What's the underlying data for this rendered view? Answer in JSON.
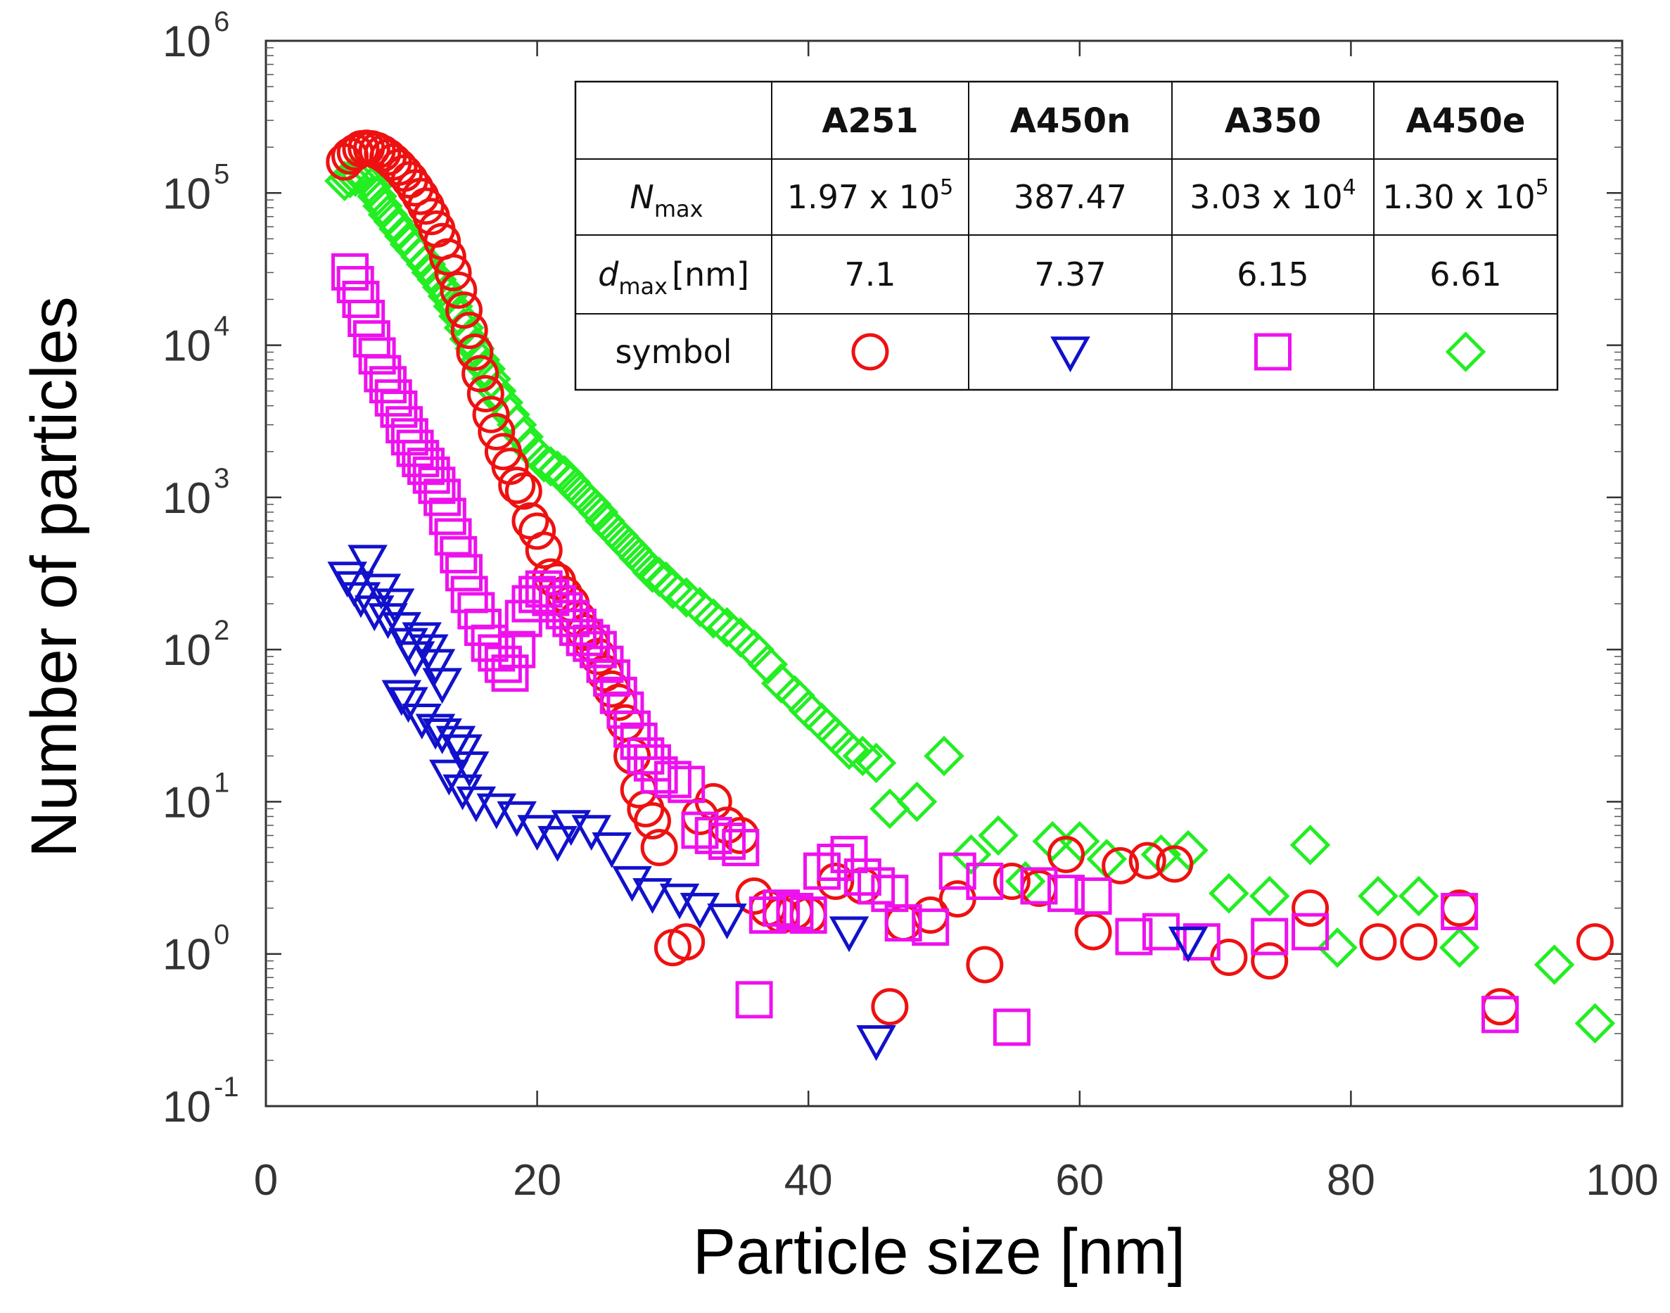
{
  "chart_data": {
    "type": "scatter",
    "xlabel": "Particle size [nm]",
    "ylabel": "Number of particles",
    "xlim": [
      0,
      100
    ],
    "ylim": [
      0.1,
      1000000
    ],
    "yscale": "log",
    "x_ticks": [
      "0",
      "20",
      "40",
      "60",
      "80",
      "100"
    ],
    "y_ticks": [
      {
        "base": "10",
        "exp": "6"
      },
      {
        "base": "10",
        "exp": "5"
      },
      {
        "base": "10",
        "exp": "4"
      },
      {
        "base": "10",
        "exp": "3"
      },
      {
        "base": "10",
        "exp": "2"
      },
      {
        "base": "10",
        "exp": "1"
      },
      {
        "base": "10",
        "exp": "0"
      },
      {
        "base": "10",
        "exp": "-1"
      }
    ],
    "series": [
      {
        "name": "A251",
        "marker": "circle",
        "color": "#ee1111",
        "points": [
          [
            5.8,
            160000
          ],
          [
            6.2,
            175000
          ],
          [
            6.6,
            185000
          ],
          [
            7.0,
            195000
          ],
          [
            7.4,
            197000
          ],
          [
            7.8,
            195000
          ],
          [
            8.2,
            190000
          ],
          [
            8.6,
            182000
          ],
          [
            9.0,
            172000
          ],
          [
            9.4,
            160000
          ],
          [
            9.8,
            148000
          ],
          [
            10.2,
            135000
          ],
          [
            10.6,
            122000
          ],
          [
            11.0,
            108000
          ],
          [
            11.4,
            95000
          ],
          [
            11.8,
            82000
          ],
          [
            12.2,
            70000
          ],
          [
            12.6,
            58000
          ],
          [
            13.0,
            48000
          ],
          [
            13.4,
            38000
          ],
          [
            13.8,
            30000
          ],
          [
            14.2,
            23000
          ],
          [
            14.6,
            17000
          ],
          [
            15.0,
            12500
          ],
          [
            15.4,
            9000
          ],
          [
            15.8,
            6500
          ],
          [
            16.2,
            4800
          ],
          [
            16.6,
            3500
          ],
          [
            17.0,
            2700
          ],
          [
            17.5,
            2000
          ],
          [
            18.0,
            1600
          ],
          [
            18.5,
            1200
          ],
          [
            19.0,
            1100
          ],
          [
            19.5,
            700
          ],
          [
            20.0,
            600
          ],
          [
            20.5,
            450
          ],
          [
            21.0,
            300
          ],
          [
            21.5,
            280
          ],
          [
            22.0,
            230
          ],
          [
            22.5,
            200
          ],
          [
            23.0,
            160
          ],
          [
            23.5,
            130
          ],
          [
            24.0,
            110
          ],
          [
            24.5,
            90
          ],
          [
            25.0,
            70
          ],
          [
            25.5,
            55
          ],
          [
            26.0,
            45
          ],
          [
            26.5,
            33
          ],
          [
            27.0,
            20
          ],
          [
            27.5,
            12
          ],
          [
            28.0,
            9
          ],
          [
            28.5,
            7.5
          ],
          [
            29.0,
            5
          ],
          [
            30.0,
            1.1
          ],
          [
            31.0,
            1.2
          ],
          [
            32.0,
            8
          ],
          [
            33.0,
            10
          ],
          [
            34.0,
            7
          ],
          [
            35.0,
            6
          ],
          [
            36.0,
            2.4
          ],
          [
            37.0,
            2.0
          ],
          [
            38.0,
            1.8
          ],
          [
            39.0,
            1.9
          ],
          [
            40.0,
            1.8
          ],
          [
            42.0,
            3.0
          ],
          [
            44.0,
            2.8
          ],
          [
            46.0,
            0.45
          ],
          [
            47.0,
            1.6
          ],
          [
            49.0,
            1.8
          ],
          [
            51.0,
            2.3
          ],
          [
            53.0,
            0.85
          ],
          [
            55.0,
            3.0
          ],
          [
            57.0,
            2.7
          ],
          [
            59.0,
            4.5
          ],
          [
            61.0,
            1.4
          ],
          [
            63.0,
            3.8
          ],
          [
            65.0,
            4.1
          ],
          [
            67.0,
            3.9
          ],
          [
            71.0,
            0.95
          ],
          [
            74.0,
            0.9
          ],
          [
            77.0,
            2.0
          ],
          [
            82.0,
            1.2
          ],
          [
            85.0,
            1.2
          ],
          [
            88.0,
            2.0
          ],
          [
            91.0,
            0.45
          ],
          [
            98.0,
            1.2
          ]
        ]
      },
      {
        "name": "A450n",
        "marker": "triangle-down",
        "color": "#1111cc",
        "points": [
          [
            6.0,
            300
          ],
          [
            6.5,
            260
          ],
          [
            7.0,
            220
          ],
          [
            7.5,
            387
          ],
          [
            8.0,
            180
          ],
          [
            8.5,
            250
          ],
          [
            9.0,
            160
          ],
          [
            9.5,
            200
          ],
          [
            10.0,
            140
          ],
          [
            10.5,
            110
          ],
          [
            11.0,
            90
          ],
          [
            11.5,
            120
          ],
          [
            12.0,
            100
          ],
          [
            12.5,
            80
          ],
          [
            13.0,
            60
          ],
          [
            10.0,
            50
          ],
          [
            10.5,
            45
          ],
          [
            11.5,
            35
          ],
          [
            12.5,
            30
          ],
          [
            13.0,
            28
          ],
          [
            14.0,
            25
          ],
          [
            14.5,
            22
          ],
          [
            15.0,
            17
          ],
          [
            13.5,
            15
          ],
          [
            14.5,
            12
          ],
          [
            15.5,
            10
          ],
          [
            17.0,
            9
          ],
          [
            18.5,
            8
          ],
          [
            20.0,
            6.5
          ],
          [
            21.5,
            5.5
          ],
          [
            22.5,
            7
          ],
          [
            24.0,
            6.5
          ],
          [
            25.5,
            5
          ],
          [
            27.0,
            3
          ],
          [
            28.5,
            2.5
          ],
          [
            30.5,
            2.3
          ],
          [
            32.0,
            2.0
          ],
          [
            34.0,
            1.7
          ],
          [
            43.0,
            1.4
          ],
          [
            45.0,
            0.27
          ],
          [
            68.0,
            1.2
          ]
        ]
      },
      {
        "name": "A350",
        "marker": "square",
        "color": "#ee11ee",
        "points": [
          [
            6.2,
            30300
          ],
          [
            6.6,
            25000
          ],
          [
            7.0,
            20000
          ],
          [
            7.4,
            15000
          ],
          [
            7.8,
            11000
          ],
          [
            8.2,
            8500
          ],
          [
            8.6,
            6500
          ],
          [
            9.0,
            5500
          ],
          [
            9.4,
            4500
          ],
          [
            9.8,
            3800
          ],
          [
            10.2,
            3000
          ],
          [
            10.6,
            2500
          ],
          [
            11.0,
            2100
          ],
          [
            11.4,
            1800
          ],
          [
            11.8,
            1600
          ],
          [
            12.2,
            1400
          ],
          [
            12.6,
            1200
          ],
          [
            13.0,
            1000
          ],
          [
            13.4,
            750
          ],
          [
            13.8,
            550
          ],
          [
            14.2,
            420
          ],
          [
            14.6,
            320
          ],
          [
            15.0,
            230
          ],
          [
            15.5,
            180
          ],
          [
            16.0,
            140
          ],
          [
            16.5,
            110
          ],
          [
            17.0,
            95
          ],
          [
            17.5,
            80
          ],
          [
            18.0,
            70
          ],
          [
            18.5,
            100
          ],
          [
            19.0,
            160
          ],
          [
            19.5,
            200
          ],
          [
            20.0,
            230
          ],
          [
            20.5,
            250
          ],
          [
            21.0,
            220
          ],
          [
            21.5,
            200
          ],
          [
            22.0,
            180
          ],
          [
            22.5,
            160
          ],
          [
            23.0,
            140
          ],
          [
            23.5,
            120
          ],
          [
            24.0,
            110
          ],
          [
            24.5,
            100
          ],
          [
            25.0,
            80
          ],
          [
            25.5,
            65
          ],
          [
            26.0,
            50
          ],
          [
            26.5,
            40
          ],
          [
            27.0,
            30
          ],
          [
            27.5,
            25
          ],
          [
            28.0,
            20
          ],
          [
            28.5,
            18
          ],
          [
            29.0,
            15
          ],
          [
            30.0,
            14
          ],
          [
            31.0,
            13
          ],
          [
            32.0,
            6.5
          ],
          [
            33.0,
            6.0
          ],
          [
            34.0,
            5.5
          ],
          [
            35.0,
            5.0
          ],
          [
            36.0,
            0.5
          ],
          [
            37.0,
            1.8
          ],
          [
            38.0,
            2.0
          ],
          [
            39.0,
            1.9
          ],
          [
            40.0,
            1.8
          ],
          [
            41.0,
            3.5
          ],
          [
            42.0,
            4.0
          ],
          [
            43.0,
            4.5
          ],
          [
            44.0,
            3.2
          ],
          [
            45.0,
            2.8
          ],
          [
            46.0,
            2.5
          ],
          [
            47.0,
            1.6
          ],
          [
            49.0,
            1.5
          ],
          [
            51.0,
            3.5
          ],
          [
            53.0,
            3.0
          ],
          [
            55.0,
            0.33
          ],
          [
            57.0,
            2.8
          ],
          [
            59.0,
            2.5
          ],
          [
            61.0,
            2.4
          ],
          [
            64.0,
            1.3
          ],
          [
            66.0,
            1.4
          ],
          [
            69.0,
            1.2
          ],
          [
            74.0,
            1.3
          ],
          [
            77.0,
            1.4
          ],
          [
            88.0,
            1.9
          ],
          [
            91.0,
            0.4
          ]
        ]
      },
      {
        "name": "A450e",
        "marker": "diamond",
        "color": "#22ee22",
        "points": [
          [
            5.8,
            120000
          ],
          [
            6.2,
            125000
          ],
          [
            6.6,
            128000
          ],
          [
            7.0,
            130000
          ],
          [
            7.4,
            125000
          ],
          [
            7.8,
            110000
          ],
          [
            8.2,
            95000
          ],
          [
            8.6,
            82000
          ],
          [
            9.0,
            72000
          ],
          [
            9.4,
            65000
          ],
          [
            9.8,
            58000
          ],
          [
            10.2,
            52000
          ],
          [
            10.6,
            46000
          ],
          [
            11.0,
            42000
          ],
          [
            11.4,
            38000
          ],
          [
            11.8,
            34000
          ],
          [
            12.2,
            30000
          ],
          [
            12.6,
            27000
          ],
          [
            13.0,
            24000
          ],
          [
            13.4,
            21000
          ],
          [
            13.8,
            18000
          ],
          [
            14.2,
            15500
          ],
          [
            14.6,
            13000
          ],
          [
            15.0,
            11000
          ],
          [
            15.4,
            9500
          ],
          [
            15.8,
            8000
          ],
          [
            16.2,
            7000
          ],
          [
            16.6,
            6000
          ],
          [
            17.0,
            5000
          ],
          [
            17.5,
            4200
          ],
          [
            18.0,
            3500
          ],
          [
            18.5,
            3000
          ],
          [
            19.0,
            2500
          ],
          [
            19.5,
            2100
          ],
          [
            20.0,
            1900
          ],
          [
            20.5,
            1700
          ],
          [
            21.0,
            1600
          ],
          [
            21.5,
            1500
          ],
          [
            22.0,
            1400
          ],
          [
            22.5,
            1250
          ],
          [
            23.0,
            1100
          ],
          [
            23.5,
            1000
          ],
          [
            24.0,
            900
          ],
          [
            24.5,
            800
          ],
          [
            25.0,
            700
          ],
          [
            25.5,
            620
          ],
          [
            26.0,
            560
          ],
          [
            26.5,
            500
          ],
          [
            27.0,
            450
          ],
          [
            27.5,
            400
          ],
          [
            28.0,
            360
          ],
          [
            28.5,
            320
          ],
          [
            29.0,
            300
          ],
          [
            29.5,
            280
          ],
          [
            30.0,
            250
          ],
          [
            31.0,
            220
          ],
          [
            32.0,
            190
          ],
          [
            33.0,
            160
          ],
          [
            34.0,
            140
          ],
          [
            35.0,
            120
          ],
          [
            36.0,
            100
          ],
          [
            37.0,
            80
          ],
          [
            38.0,
            60
          ],
          [
            39.0,
            50
          ],
          [
            40.0,
            40
          ],
          [
            41.0,
            33
          ],
          [
            42.0,
            27
          ],
          [
            43.0,
            22
          ],
          [
            44.0,
            20
          ],
          [
            45.0,
            18
          ],
          [
            46.0,
            9
          ],
          [
            48.0,
            10
          ],
          [
            50.0,
            20
          ],
          [
            52.0,
            4.5
          ],
          [
            54.0,
            6
          ],
          [
            56.0,
            3
          ],
          [
            58.0,
            5.5
          ],
          [
            60.0,
            5.5
          ],
          [
            62.0,
            4.2
          ],
          [
            66.0,
            4.5
          ],
          [
            68.0,
            4.8
          ],
          [
            71.0,
            2.5
          ],
          [
            74.0,
            2.4
          ],
          [
            77.0,
            5.2
          ],
          [
            79.0,
            1.1
          ],
          [
            82.0,
            2.4
          ],
          [
            85.0,
            2.4
          ],
          [
            88.0,
            1.1
          ],
          [
            95.0,
            0.85
          ],
          [
            98.0,
            0.35
          ]
        ]
      }
    ],
    "table": {
      "headers": [
        "",
        "A251",
        "A450n",
        "A350",
        "A450e"
      ],
      "nmax": {
        "label_main": "N",
        "label_sub": "max",
        "cells": [
          {
            "text": "1.97 x 10",
            "sup": "5"
          },
          {
            "text": "387.47",
            "sup": ""
          },
          {
            "text": "3.03 x 10",
            "sup": "4"
          },
          {
            "text": "1.30 x 10",
            "sup": "5"
          }
        ]
      },
      "dmax": {
        "label_main": "d",
        "label_sub": "max",
        "label_unit": "[nm]",
        "cells": [
          "7.1",
          "7.37",
          "6.15",
          "6.61"
        ]
      },
      "symbol_label": "symbol"
    }
  }
}
